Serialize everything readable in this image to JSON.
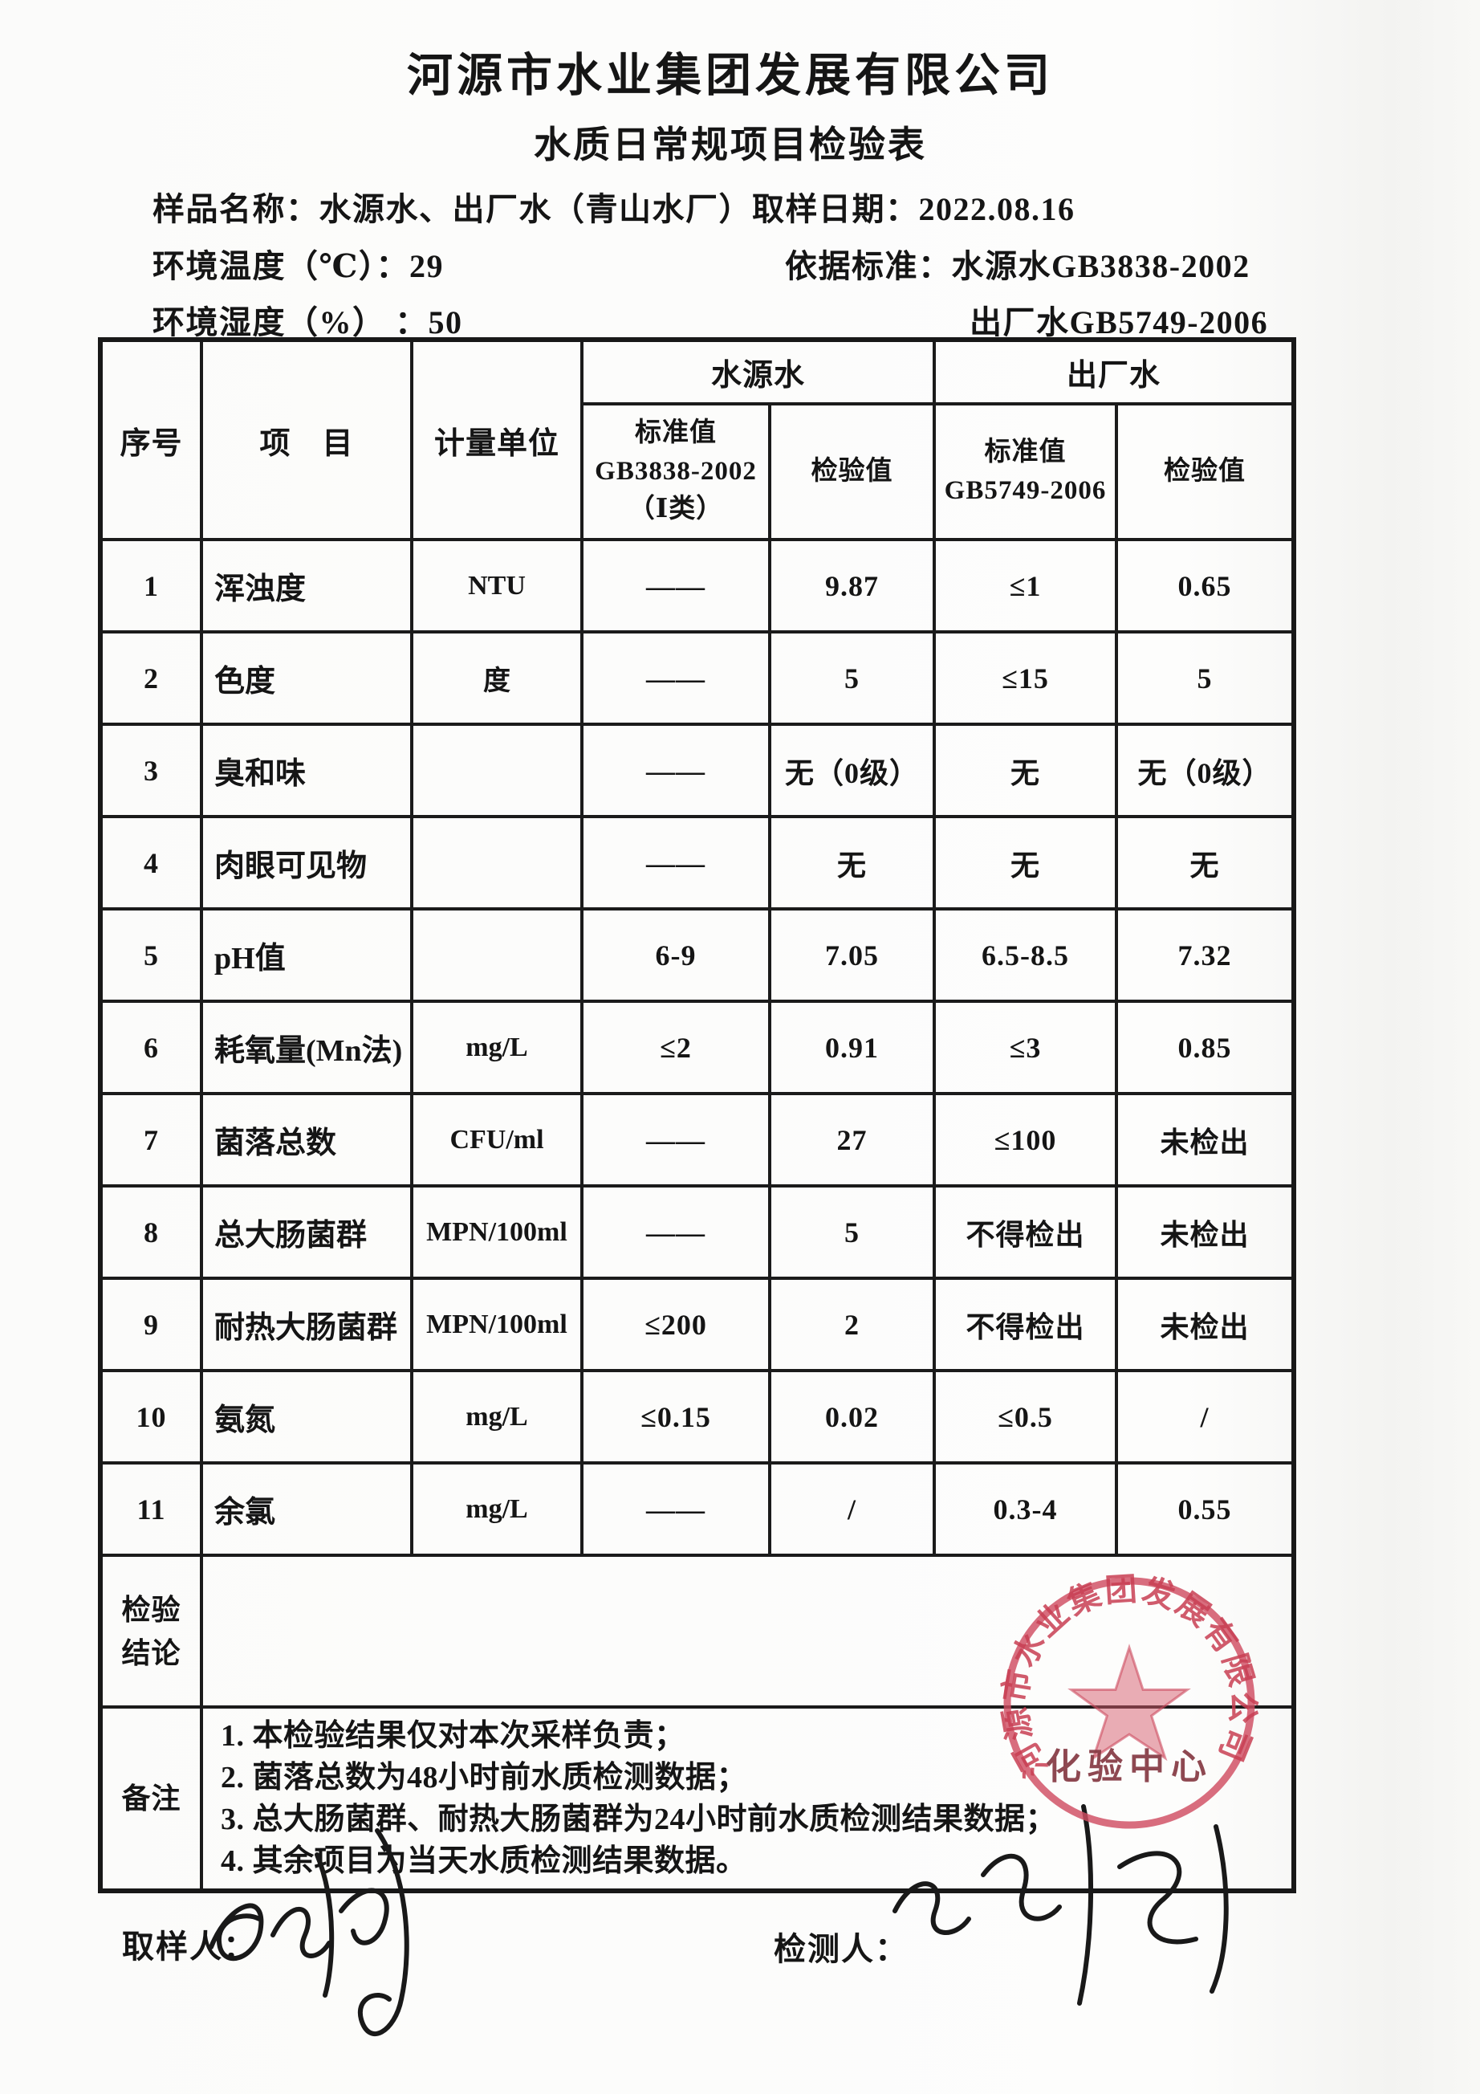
{
  "page": {
    "title": "河源市水业集团发展有限公司",
    "subtitle": "水质日常规项目检验表",
    "sample_name_label": "样品名称：",
    "sample_name_value": "水源水、出厂水（青山水厂）",
    "sampling_date_label": "取样日期：",
    "sampling_date_value": "2022.08.16",
    "env_temp_label": "环境温度（℃）：",
    "env_temp_value": "29",
    "standard_label": "依据标准：",
    "standard_source_water": "水源水GB3838-2002",
    "env_humidity_label": "环境湿度（%） ：",
    "env_humidity_value": "50",
    "standard_finished_water": "出厂水GB5749-2006"
  },
  "table": {
    "headers": {
      "no": "序号",
      "item": "项　目",
      "unit": "计量单位",
      "source_water": "水源水",
      "finished_water": "出厂水",
      "source_std": "标准值\nGB3838-2002\n（Ⅰ类）",
      "source_val": "检验值",
      "finished_std": "标准值\nGB5749-2006",
      "finished_val": "检验值"
    },
    "rows": [
      [
        "1",
        "浑浊度",
        "NTU",
        "——",
        "9.87",
        "≤1",
        "0.65"
      ],
      [
        "2",
        "色度",
        "度",
        "——",
        "5",
        "≤15",
        "5"
      ],
      [
        "3",
        "臭和味",
        "",
        "——",
        "无（0级）",
        "无",
        "无（0级）"
      ],
      [
        "4",
        "肉眼可见物",
        "",
        "——",
        "无",
        "无",
        "无"
      ],
      [
        "5",
        "pH值",
        "",
        "6-9",
        "7.05",
        "6.5-8.5",
        "7.32"
      ],
      [
        "6",
        "耗氧量(Mn法)",
        "mg/L",
        "≤2",
        "0.91",
        "≤3",
        "0.85"
      ],
      [
        "7",
        "菌落总数",
        "CFU/ml",
        "——",
        "27",
        "≤100",
        "未检出"
      ],
      [
        "8",
        "总大肠菌群",
        "MPN/100ml",
        "——",
        "5",
        "不得检出",
        "未检出"
      ],
      [
        "9",
        "耐热大肠菌群",
        "MPN/100ml",
        "≤200",
        "2",
        "不得检出",
        "未检出"
      ],
      [
        "10",
        "氨氮",
        "mg/L",
        "≤0.15",
        "0.02",
        "≤0.5",
        "/"
      ],
      [
        "11",
        "余氯",
        "mg/L",
        "——",
        "/",
        "0.3-4",
        "0.55"
      ]
    ],
    "conclusion_label": "检验\n结论",
    "conclusion_value": "",
    "remarks_label": "备注",
    "remarks": [
      "1. 本检验结果仅对本次采样负责；",
      "2. 菌落总数为48小时前水质检测数据；",
      "3. 总大肠菌群、耐热大肠菌群为24小时前水质检测结果数据；",
      "4. 其余项目为当天水质检测结果数据。"
    ]
  },
  "footer": {
    "sampler_label": "取样人：",
    "tester_label": "检测人："
  },
  "seal": {
    "company": "河源市水业集团发展有限公司",
    "center_label": "化验中心",
    "color": "#cc5068"
  }
}
